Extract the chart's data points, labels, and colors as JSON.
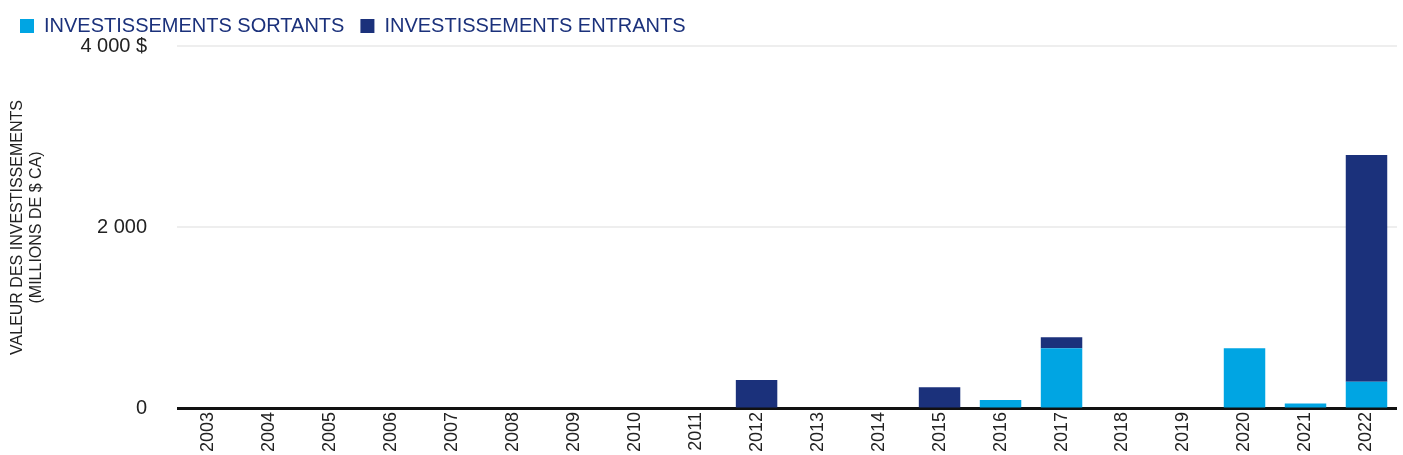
{
  "chart_data": {
    "type": "bar",
    "stacked": true,
    "ylabel": "VALEUR DES INVESTISSEMENTS\n(MILLIONS DE $ CA)",
    "categories": [
      "2003",
      "2004",
      "2005",
      "2006",
      "2007",
      "2008",
      "2009",
      "2010",
      "2011",
      "2012",
      "2013",
      "2014",
      "2015",
      "2016",
      "2017",
      "2018",
      "2019",
      "2020",
      "2021",
      "2022"
    ],
    "series": [
      {
        "name": "INVESTISSEMENTS SORTANTS",
        "color": "#00a5e3",
        "values": [
          0,
          0,
          0,
          0,
          0,
          0,
          0,
          0,
          0,
          0,
          0,
          0,
          0,
          100,
          670,
          0,
          0,
          670,
          60,
          300
        ]
      },
      {
        "name": "INVESTISSEMENTS ENTRANTS",
        "color": "#1b317b",
        "values": [
          0,
          0,
          0,
          0,
          0,
          0,
          0,
          0,
          0,
          320,
          0,
          0,
          240,
          0,
          120,
          0,
          0,
          0,
          0,
          2500
        ]
      }
    ],
    "ylim": [
      0,
      4000
    ],
    "yticks": [
      0,
      {
        "value": 2000,
        "label": "2 000"
      },
      {
        "value": 4000,
        "label": "4 000 $"
      }
    ],
    "grid": "y",
    "legend": "top left"
  }
}
